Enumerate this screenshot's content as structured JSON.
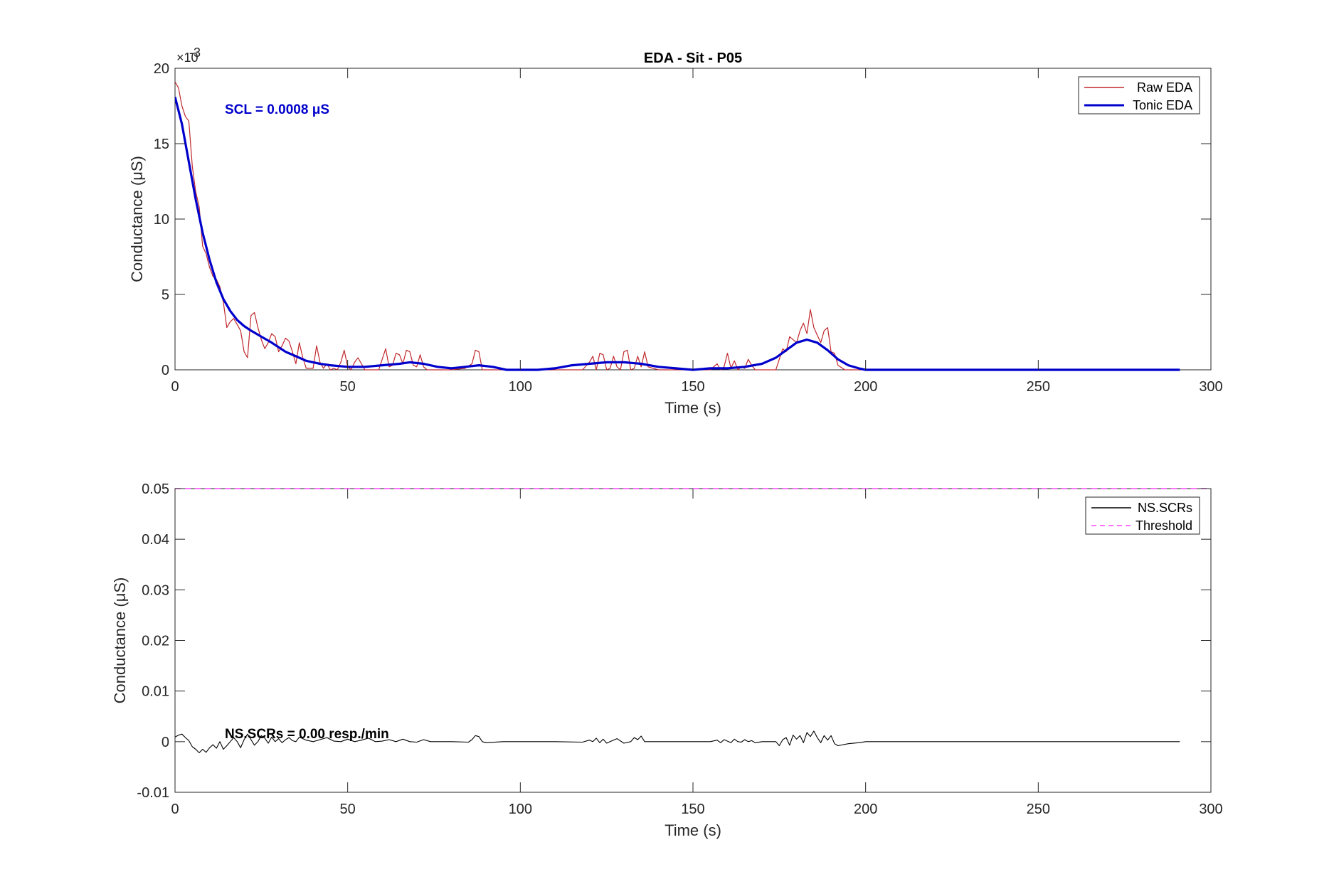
{
  "chart_data": [
    {
      "type": "line",
      "title": "EDA - Sit - P05",
      "xlabel": "Time (s)",
      "ylabel": "Conductance (μS)",
      "xlim": [
        0,
        300
      ],
      "ylim": [
        0,
        0.02
      ],
      "y_exponent_label": "×10",
      "y_exponent_power": "-3",
      "x_ticks": [
        "0",
        "50",
        "100",
        "150",
        "200",
        "250",
        "300"
      ],
      "y_ticks": [
        "0",
        "5",
        "10",
        "15",
        "20"
      ],
      "y_tick_values": [
        0,
        0.005,
        0.01,
        0.015,
        0.02
      ],
      "grid": false,
      "legend_position": "top-right",
      "annotation": {
        "text": "SCL = 0.0008 μS",
        "color": "#0000cc"
      },
      "series": [
        {
          "name": "Raw EDA",
          "color": "#c0282d",
          "x": [
            0,
            1,
            2,
            3,
            4,
            5,
            6,
            7,
            8,
            9,
            10,
            11,
            12,
            13,
            14,
            15,
            16,
            17,
            18,
            19,
            20,
            21,
            22,
            23,
            24,
            25,
            26,
            27,
            28,
            29,
            30,
            31,
            32,
            33,
            34,
            35,
            36,
            37,
            38,
            39,
            40,
            41,
            42,
            43,
            44,
            45,
            46,
            47,
            48,
            49,
            50,
            51,
            52,
            53,
            55,
            57,
            59,
            60,
            61,
            62,
            63,
            64,
            65,
            66,
            67,
            68,
            69,
            70,
            71,
            72,
            73,
            75,
            80,
            84,
            86,
            87,
            88,
            89,
            90,
            92,
            100,
            110,
            118,
            120,
            121,
            122,
            123,
            124,
            125,
            126,
            127,
            128,
            129,
            130,
            131,
            132,
            133,
            134,
            135,
            136,
            137,
            140,
            150,
            155,
            157,
            158,
            159,
            160,
            161,
            162,
            163,
            164,
            165,
            166,
            167,
            168,
            170,
            172,
            174,
            175,
            176,
            177,
            178,
            179,
            180,
            181,
            182,
            183,
            184,
            185,
            186,
            187,
            188,
            189,
            190,
            191,
            192,
            194,
            196,
            200,
            250,
            291
          ],
          "values": [
            0.0191,
            0.0187,
            0.0175,
            0.0168,
            0.0165,
            0.0135,
            0.0118,
            0.0108,
            0.0082,
            0.0077,
            0.0068,
            0.0062,
            0.006,
            0.0055,
            0.0045,
            0.0028,
            0.0032,
            0.0034,
            0.003,
            0.0026,
            0.0012,
            0.0008,
            0.0036,
            0.0038,
            0.0028,
            0.002,
            0.0014,
            0.0018,
            0.0024,
            0.0022,
            0.0012,
            0.0016,
            0.0021,
            0.0019,
            0.0012,
            0.0004,
            0.0018,
            0.0008,
            0.0001,
            0.0001,
            0.0001,
            0.0016,
            0.0005,
            0.0001,
            0.0004,
            0.0,
            0.0001,
            0.0,
            0.0005,
            0.0013,
            0.0002,
            0.0,
            0.0005,
            0.0008,
            0.0,
            0.0,
            0.0,
            0.0007,
            0.0014,
            0.0002,
            0.0003,
            0.0011,
            0.001,
            0.0004,
            0.0013,
            0.0012,
            0.0003,
            0.0002,
            0.001,
            0.0002,
            0.0,
            0.0,
            0.0,
            0.0001,
            0.0004,
            0.0013,
            0.0012,
            0.0,
            0.0,
            0.0,
            0.0,
            0.0,
            0.0,
            0.0005,
            0.0009,
            0.0,
            0.0011,
            0.001,
            0.0,
            0.0001,
            0.0009,
            0.0002,
            0.0,
            0.0012,
            0.0013,
            0.0,
            0.0001,
            0.0009,
            0.0002,
            0.0012,
            0.0002,
            0.0,
            0.0,
            0.0,
            0.0004,
            0.0,
            0.0002,
            0.0011,
            0.0001,
            0.0006,
            0.0,
            0.0002,
            0.0001,
            0.0007,
            0.0003,
            0.0,
            0.0,
            0.0,
            0.0,
            0.0007,
            0.0014,
            0.0012,
            0.0022,
            0.002,
            0.0018,
            0.0026,
            0.0031,
            0.0024,
            0.004,
            0.0028,
            0.0023,
            0.0018,
            0.0026,
            0.0028,
            0.0012,
            0.0011,
            0.0003,
            0.0,
            0.0,
            0.0,
            0.0,
            0.0
          ]
        },
        {
          "name": "Tonic EDA",
          "color": "#0000cc",
          "x": [
            0,
            2,
            4,
            6,
            8,
            10,
            12,
            14,
            16,
            18,
            20,
            22,
            25,
            28,
            30,
            32,
            35,
            38,
            40,
            42,
            45,
            50,
            55,
            60,
            65,
            68,
            72,
            76,
            80,
            84,
            88,
            92,
            96,
            100,
            105,
            110,
            115,
            120,
            125,
            130,
            135,
            140,
            145,
            150,
            155,
            160,
            165,
            170,
            174,
            177,
            180,
            183,
            186,
            189,
            192,
            195,
            198,
            200,
            210,
            250,
            291
          ],
          "values": [
            0.0181,
            0.0163,
            0.0138,
            0.0113,
            0.0091,
            0.0073,
            0.0058,
            0.0047,
            0.0039,
            0.0033,
            0.0029,
            0.0026,
            0.0022,
            0.0018,
            0.0015,
            0.0012,
            0.0009,
            0.0006,
            0.0005,
            0.0004,
            0.0003,
            0.0002,
            0.0002,
            0.0003,
            0.0004,
            0.0005,
            0.0004,
            0.0002,
            0.0001,
            0.0002,
            0.0003,
            0.0002,
            0.0,
            0.0,
            0.0,
            0.0001,
            0.0003,
            0.0004,
            0.0005,
            0.0005,
            0.0004,
            0.0002,
            0.0001,
            0.0,
            0.0001,
            0.0001,
            0.0002,
            0.0004,
            0.0008,
            0.0013,
            0.0018,
            0.002,
            0.0018,
            0.0013,
            0.0007,
            0.0003,
            0.0001,
            0.0,
            0.0,
            0.0,
            0.0
          ]
        }
      ]
    },
    {
      "type": "line",
      "title": "",
      "xlabel": "Time (s)",
      "ylabel": "Conductance (μS)",
      "xlim": [
        0,
        300
      ],
      "ylim": [
        -0.01,
        0.05
      ],
      "x_ticks": [
        "0",
        "50",
        "100",
        "150",
        "200",
        "250",
        "300"
      ],
      "y_ticks": [
        "-0.01",
        "0",
        "0.01",
        "0.02",
        "0.03",
        "0.04",
        "0.05"
      ],
      "y_tick_values": [
        -0.01,
        0,
        0.01,
        0.02,
        0.03,
        0.04,
        0.05
      ],
      "grid": false,
      "legend_position": "top-right",
      "annotation": {
        "text": "NS.SCRs = 0.00 resp./min",
        "color": "#000000"
      },
      "series": [
        {
          "name": "NS.SCRs",
          "color": "#000000",
          "x": [
            0,
            1,
            2,
            3,
            4,
            5,
            6,
            7,
            8,
            9,
            10,
            11,
            12,
            13,
            14,
            15,
            16,
            17,
            18,
            19,
            20,
            21,
            22,
            23,
            24,
            25,
            26,
            27,
            28,
            29,
            30,
            31,
            32,
            33,
            34,
            35,
            36,
            38,
            40,
            42,
            44,
            46,
            48,
            50,
            52,
            54,
            56,
            58,
            60,
            62,
            64,
            66,
            68,
            70,
            72,
            74,
            76,
            80,
            85,
            86,
            87,
            88,
            89,
            90,
            95,
            100,
            110,
            118,
            120,
            121,
            122,
            123,
            124,
            125,
            126,
            128,
            130,
            132,
            133,
            134,
            135,
            136,
            138,
            140,
            150,
            155,
            157,
            158,
            159,
            160,
            161,
            162,
            163,
            164,
            165,
            166,
            167,
            168,
            170,
            174,
            175,
            176,
            177,
            178,
            179,
            180,
            181,
            182,
            183,
            184,
            185,
            186,
            187,
            188,
            189,
            190,
            191,
            192,
            195,
            198,
            200,
            250,
            291
          ],
          "values": [
            0.0009,
            0.0013,
            0.0015,
            0.0008,
            0.0002,
            -0.001,
            -0.0015,
            -0.0022,
            -0.0015,
            -0.0021,
            -0.0012,
            -0.0006,
            -0.0013,
            0.0,
            -0.0015,
            -0.0008,
            0.0,
            0.0008,
            0.0,
            -0.0012,
            0.0004,
            0.0015,
            0.0004,
            -0.0007,
            0.0,
            0.0012,
            0.0007,
            -0.0003,
            0.0009,
            0.0,
            0.0006,
            -0.0002,
            0.0004,
            0.0008,
            0.0002,
            0.0,
            0.0009,
            0.0003,
            0.0,
            0.0004,
            0.0008,
            0.0001,
            0.0,
            0.0005,
            0.0,
            0.0003,
            0.0007,
            0.0,
            0.0001,
            0.0004,
            0.0,
            0.0005,
            0.0,
            -0.0001,
            0.0004,
            0.0,
            0.0,
            0.0,
            -0.0001,
            0.0004,
            0.0012,
            0.001,
            0.0,
            -0.0002,
            0.0,
            0.0,
            0.0,
            -0.0001,
            0.0003,
            0.0,
            0.0007,
            -0.0002,
            0.0005,
            -0.0003,
            0.0,
            0.0006,
            -0.0003,
            0.0,
            0.0008,
            0.0004,
            0.0011,
            0.0,
            0.0,
            0.0,
            0.0,
            0.0,
            0.0003,
            -0.0002,
            0.0004,
            0.0001,
            -0.0002,
            0.0005,
            0.0,
            -0.0001,
            0.0004,
            0.0,
            0.0002,
            -0.0002,
            0.0,
            0.0,
            -0.0008,
            0.0004,
            0.0008,
            -0.0007,
            0.0013,
            0.0005,
            0.0012,
            -0.0002,
            0.0018,
            0.001,
            0.0021,
            0.0008,
            -0.0002,
            0.0012,
            0.0003,
            0.0012,
            -0.0004,
            -0.0008,
            -0.0004,
            -0.0002,
            0.0,
            0.0,
            0.0
          ]
        },
        {
          "name": "Threshold",
          "color": "#ff44ff",
          "x": [
            0,
            300
          ],
          "values": [
            0.05,
            0.05
          ]
        }
      ]
    }
  ]
}
